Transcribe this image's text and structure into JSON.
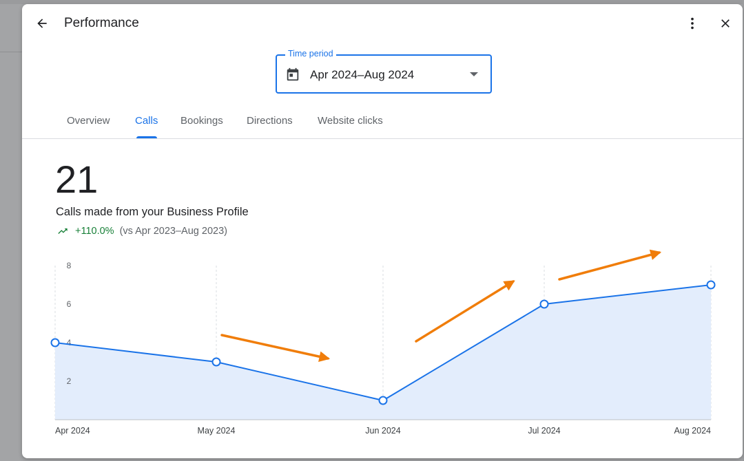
{
  "header": {
    "title": "Performance",
    "back_icon": "arrow-back-icon",
    "more_icon": "more-vert-icon",
    "close_icon": "close-icon"
  },
  "time_period": {
    "label": "Time period",
    "value": "Apr 2024–Aug 2024",
    "icon": "calendar-icon"
  },
  "tabs": [
    {
      "label": "Overview",
      "active": false
    },
    {
      "label": "Calls",
      "active": true
    },
    {
      "label": "Bookings",
      "active": false
    },
    {
      "label": "Directions",
      "active": false
    },
    {
      "label": "Website clicks",
      "active": false
    }
  ],
  "metric": {
    "value": "21",
    "description": "Calls made from your Business Profile",
    "trend_value": "+110.0%",
    "trend_compare": "(vs Apr 2023–Aug 2023)",
    "trend_icon": "trending-up-icon"
  },
  "colors": {
    "accent": "#1a73e8",
    "positive": "#188038",
    "area_fill": "#e3edfc",
    "annotation_arrow": "#f07d0a"
  },
  "chart_data": {
    "type": "area",
    "categories": [
      "Apr 2024",
      "May 2024",
      "Jun 2024",
      "Jul 2024",
      "Aug 2024"
    ],
    "series": [
      {
        "values": [
          4,
          3,
          1,
          6,
          7
        ]
      }
    ],
    "yticks": [
      "2",
      "4",
      "6",
      "8"
    ],
    "ylim": [
      0,
      8
    ],
    "grid": "vertical dashed",
    "annotations": [
      {
        "type": "arrow",
        "direction": "down-right",
        "near": "May 2024"
      },
      {
        "type": "arrow",
        "direction": "up-right",
        "near": "Jun 2024"
      },
      {
        "type": "arrow",
        "direction": "up-right",
        "near": "Jul 2024"
      }
    ]
  }
}
